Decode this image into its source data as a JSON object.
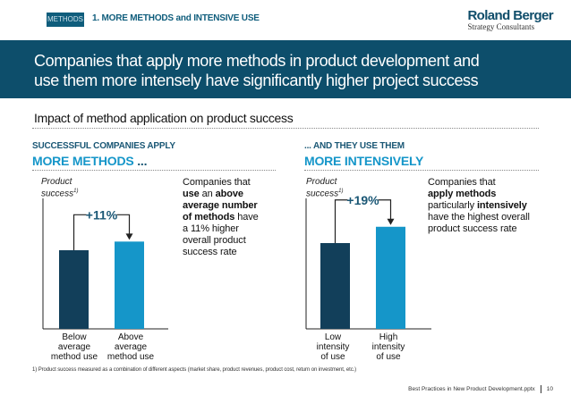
{
  "header": {
    "tag": "METHODS",
    "section": "1. MORE METHODS and INTENSIVE USE",
    "logo_name": "Roland Berger",
    "logo_sub": "Strategy Consultants"
  },
  "banner": {
    "headline_line1": "Companies that apply more methods in product development and",
    "headline_line2": "use them more intensely have significantly higher project success"
  },
  "subtitle": "Impact of method application on product success",
  "colors": {
    "navy": "#0d4e6b",
    "dark_bar": "#123f5a",
    "light_bar": "#1596c9"
  },
  "left_panel": {
    "heading": "SUCCESSFUL COMPANIES APPLY",
    "emphasis": "MORE METHODS",
    "emphasis_suffix": " ...",
    "axis_label": "Product",
    "axis_label2": "success",
    "axis_sup": "1)",
    "description": {
      "line1": "Companies that",
      "line2_bold_prefix": "use",
      "line2_rest": " an ",
      "line2_bold": "above",
      "line3_bold": "average number",
      "line4_bold": "of methods",
      "line4_rest": " have",
      "line5": "a 11% higher",
      "line6": "overall product",
      "line7": "success rate"
    }
  },
  "right_panel": {
    "heading": "... AND THEY USE THEM",
    "emphasis": "MORE INTENSIVELY",
    "axis_label": "Product",
    "axis_label2": "success",
    "axis_sup": "1)",
    "description": {
      "line1": "Companies that",
      "line2_bold": "apply methods",
      "line3": "particularly ",
      "line3_bold": "intensively",
      "line4": "have the highest overall",
      "line5": "product success rate"
    }
  },
  "chart_data": [
    {
      "type": "bar",
      "categories": [
        "Below average method use",
        "Above average method use"
      ],
      "category_lines": [
        [
          "Below",
          "average",
          "method use"
        ],
        [
          "Above",
          "average",
          "method use"
        ]
      ],
      "values": [
        100,
        111
      ],
      "annotation": "+11%",
      "ylabel": "Product success1)"
    },
    {
      "type": "bar",
      "categories": [
        "Low intensity of use",
        "High intensity of use"
      ],
      "category_lines": [
        [
          "Low",
          "intensity",
          "of use"
        ],
        [
          "High",
          "intensity",
          "of use"
        ]
      ],
      "values": [
        100,
        119
      ],
      "annotation": "+19%",
      "ylabel": "Product success1)"
    }
  ],
  "footnote": "1) Product success measured as a combination of different aspects (market share, product revenues, product cost, return on investment, etc.)",
  "footer": {
    "doc": "Best Practices in New Product Development.pptx",
    "page": "10"
  }
}
